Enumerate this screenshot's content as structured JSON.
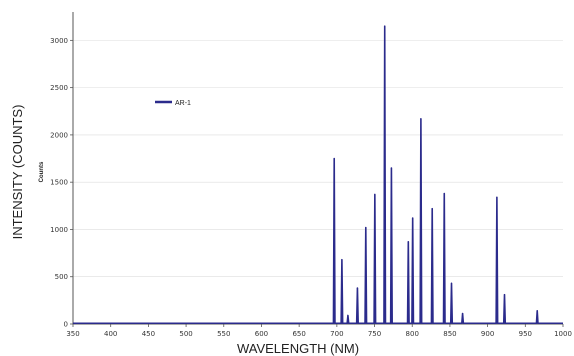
{
  "chart_data": {
    "type": "line",
    "xlabel": "WAVELENGTH (NM)",
    "ylabel": "INTENSITY (COUNTS)",
    "inner_ylabel": "Counts",
    "xlim": [
      350,
      1000
    ],
    "ylim": [
      0,
      3300
    ],
    "xticks": [
      350,
      400,
      450,
      500,
      550,
      600,
      650,
      700,
      750,
      800,
      850,
      900,
      950,
      1000
    ],
    "yticks": [
      0,
      500,
      1000,
      1500,
      2000,
      2500,
      3000
    ],
    "legend": {
      "position": "top-left"
    },
    "colors": {
      "series": "#2b2b8c",
      "axis": "#555555",
      "grid": "#dddddd"
    },
    "series": [
      {
        "name": "AR-1",
        "peaks": [
          {
            "x": 696.5,
            "y": 1750
          },
          {
            "x": 706.7,
            "y": 680
          },
          {
            "x": 714.7,
            "y": 90
          },
          {
            "x": 727.3,
            "y": 380
          },
          {
            "x": 738.4,
            "y": 1020
          },
          {
            "x": 750.4,
            "y": 1370
          },
          {
            "x": 763.5,
            "y": 3150
          },
          {
            "x": 772.4,
            "y": 1650
          },
          {
            "x": 794.8,
            "y": 870
          },
          {
            "x": 800.6,
            "y": 1120
          },
          {
            "x": 811.5,
            "y": 2170
          },
          {
            "x": 826.5,
            "y": 1220
          },
          {
            "x": 842.5,
            "y": 1380
          },
          {
            "x": 852.1,
            "y": 430
          },
          {
            "x": 866.8,
            "y": 110
          },
          {
            "x": 912.3,
            "y": 1340
          },
          {
            "x": 922.4,
            "y": 310
          },
          {
            "x": 965.8,
            "y": 140
          }
        ]
      }
    ]
  }
}
